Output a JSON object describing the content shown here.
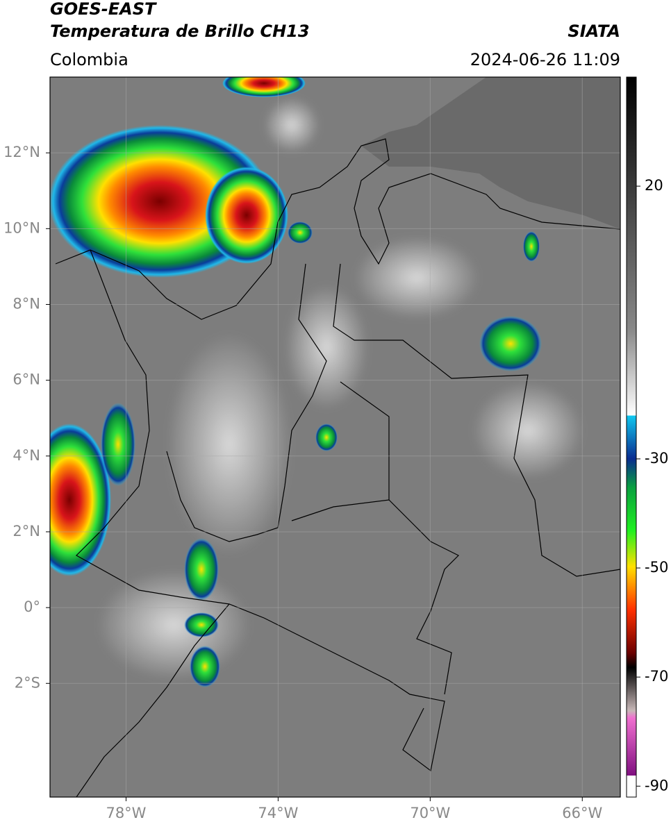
{
  "header": {
    "title": "GOES-EAST",
    "subtitle": "Temperatura de Brillo CH13",
    "source": "SIATA",
    "region": "Colombia",
    "datetime": "2024-06-26 11:09"
  },
  "map": {
    "lonlim": [
      -80,
      -65
    ],
    "latlim": [
      -5,
      14
    ],
    "xticks": [
      {
        "value": -78,
        "label": "78°W"
      },
      {
        "value": -74,
        "label": "74°W"
      },
      {
        "value": -70,
        "label": "70°W"
      },
      {
        "value": -66,
        "label": "66°W"
      }
    ],
    "yticks": [
      {
        "value": 12,
        "label": "12°N"
      },
      {
        "value": 10,
        "label": "10°N"
      },
      {
        "value": 8,
        "label": "8°N"
      },
      {
        "value": 6,
        "label": "6°N"
      },
      {
        "value": 4,
        "label": "4°N"
      },
      {
        "value": 2,
        "label": "2°N"
      },
      {
        "value": 0,
        "label": "0°"
      },
      {
        "value": -2,
        "label": "2°S"
      }
    ],
    "grid": true
  },
  "colorbar": {
    "lim": [
      -92,
      40
    ],
    "ticks": [
      20,
      -30,
      -50,
      -70,
      -90
    ]
  }
}
